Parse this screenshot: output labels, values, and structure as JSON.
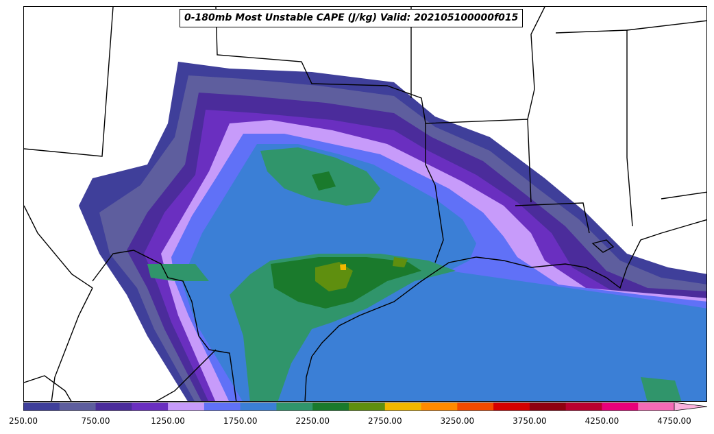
{
  "title": "0-180mb Most Unstable CAPE (J/kg) Valid: 202105100000f015",
  "colorbar": {
    "levels": [
      250,
      500,
      750,
      1000,
      1250,
      1500,
      1750,
      2000,
      2250,
      2500,
      2750,
      3000,
      3250,
      3500,
      3750,
      4000,
      4250,
      4500,
      4750
    ],
    "colors": [
      "#3f3f9a",
      "#5e5e9e",
      "#4b2c9b",
      "#6a2fc0",
      "#c79bfa",
      "#6071f7",
      "#3b7fd6",
      "#30956b",
      "#1a7a2c",
      "#5f8f0f",
      "#f1b800",
      "#ff8a00",
      "#f24a00",
      "#d40000",
      "#8f0010",
      "#b8002f",
      "#e8007a",
      "#f46bb5",
      "#fbb2dd"
    ],
    "tick_labels": [
      "250.00",
      "750.00",
      "1250.00",
      "1750.00",
      "2250.00",
      "2750.00",
      "3250.00",
      "3750.00",
      "4250.00",
      "4750.00"
    ],
    "extend": "max"
  },
  "icons": {
    "state_boundaries": "state-boundary-lines",
    "coastline": "coastline-line"
  }
}
